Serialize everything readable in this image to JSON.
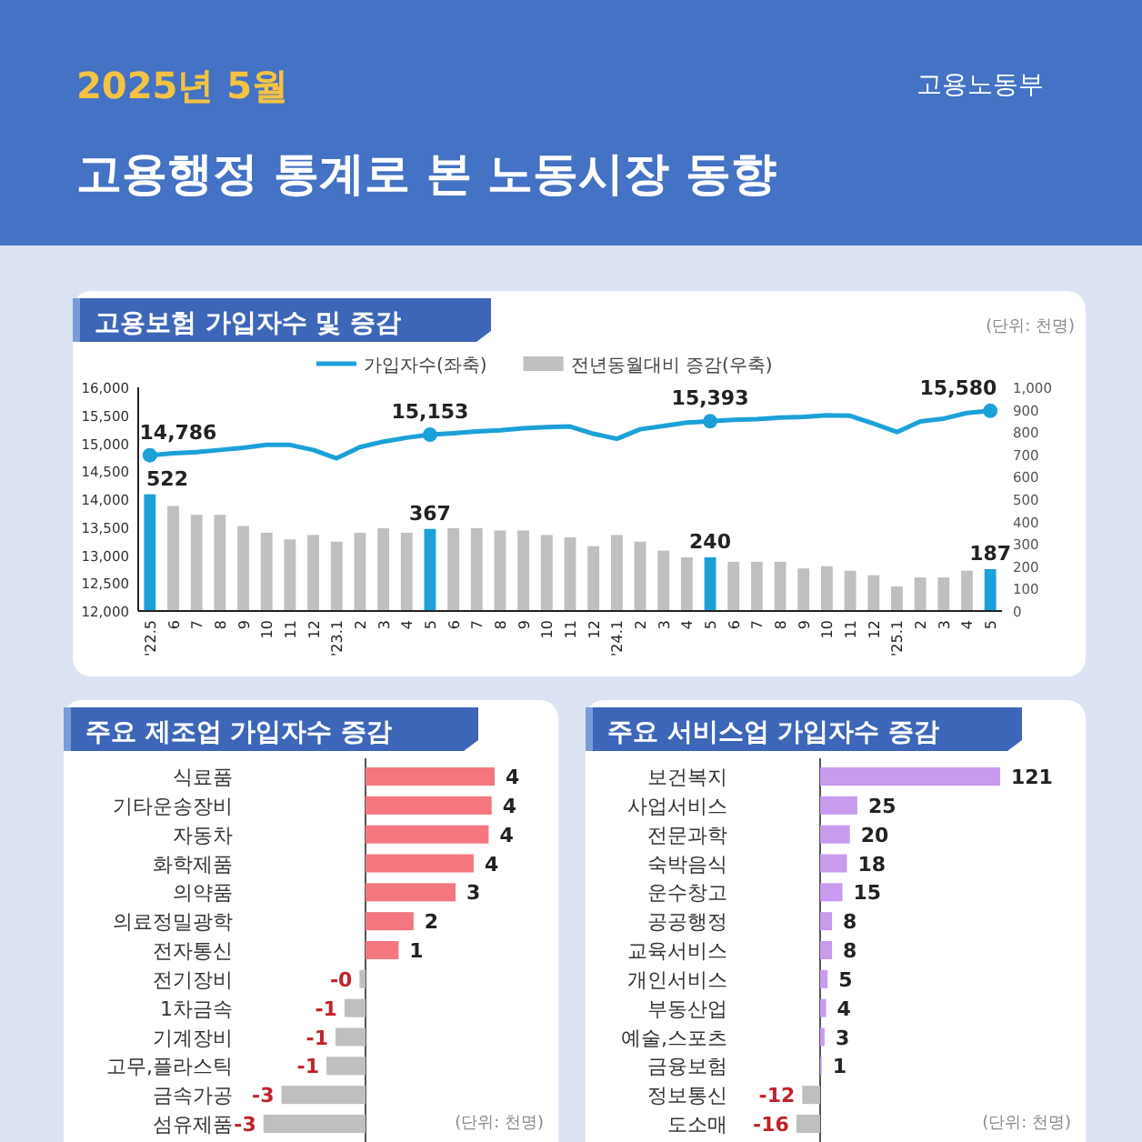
{
  "chart_data": [
    {
      "type": "other",
      "title": "고용행정 통계로 본 노동시장 동향",
      "subtitle": "2025년 5월",
      "annotations": [
        "고용노동부"
      ]
    },
    {
      "type": "bar",
      "title": "고용보험 가입자수 및 증감",
      "annotations": [
        "(단위: 천명)"
      ],
      "legend": "top",
      "categories": [
        "'22.5",
        "6",
        "7",
        "8",
        "9",
        "10",
        "11",
        "12",
        "'23.1",
        "2",
        "3",
        "4",
        "5",
        "6",
        "7",
        "8",
        "9",
        "10",
        "11",
        "12",
        "'24.1",
        "2",
        "3",
        "4",
        "5",
        "6",
        "7",
        "8",
        "9",
        "10",
        "11",
        "12",
        "'25.1",
        "2",
        "3",
        "4",
        "5"
      ],
      "ylim": [
        12000,
        16000
      ],
      "yticks": [
        {
          "value": 12000,
          "label": "12,000"
        },
        {
          "value": 12500,
          "label": "12,500"
        },
        {
          "value": 13000,
          "label": "13,000"
        },
        {
          "value": 13500,
          "label": "13,500"
        },
        {
          "value": 14000,
          "label": "14,000"
        },
        {
          "value": 14500,
          "label": "14,500"
        },
        {
          "value": 15000,
          "label": "15,000"
        },
        {
          "value": 15500,
          "label": "15,500"
        },
        {
          "value": 16000,
          "label": "16,000"
        }
      ],
      "y2lim": [
        0,
        1000
      ],
      "y2ticks": [
        0,
        100,
        200,
        300,
        400,
        500,
        600,
        700,
        800,
        900,
        {
          "value": 1000,
          "label": "1,000"
        }
      ],
      "series": [
        {
          "name": "전년동월대비 증감(우축)",
          "type": "bar",
          "axis": "y2",
          "color": "#bfbfbf",
          "colors": [
            "#1ba1d8",
            "#bfbfbf",
            "#bfbfbf",
            "#bfbfbf",
            "#bfbfbf",
            "#bfbfbf",
            "#bfbfbf",
            "#bfbfbf",
            "#bfbfbf",
            "#bfbfbf",
            "#bfbfbf",
            "#bfbfbf",
            "#1ba1d8",
            "#bfbfbf",
            "#bfbfbf",
            "#bfbfbf",
            "#bfbfbf",
            "#bfbfbf",
            "#bfbfbf",
            "#bfbfbf",
            "#bfbfbf",
            "#bfbfbf",
            "#bfbfbf",
            "#bfbfbf",
            "#1ba1d8",
            "#bfbfbf",
            "#bfbfbf",
            "#bfbfbf",
            "#bfbfbf",
            "#bfbfbf",
            "#bfbfbf",
            "#bfbfbf",
            "#bfbfbf",
            "#bfbfbf",
            "#bfbfbf",
            "#bfbfbf",
            "#1ba1d8"
          ],
          "values": [
            522,
            470,
            430,
            430,
            380,
            350,
            320,
            340,
            310,
            350,
            370,
            350,
            367,
            370,
            370,
            360,
            360,
            340,
            330,
            290,
            340,
            310,
            270,
            240,
            240,
            220,
            220,
            220,
            190,
            200,
            180,
            160,
            110,
            150,
            150,
            180,
            187
          ],
          "value_labels": [
            "522",
            null,
            null,
            null,
            null,
            null,
            null,
            null,
            null,
            null,
            null,
            null,
            "367",
            null,
            null,
            null,
            null,
            null,
            null,
            null,
            null,
            null,
            null,
            null,
            "240",
            null,
            null,
            null,
            null,
            null,
            null,
            null,
            null,
            null,
            null,
            null,
            "187"
          ]
        },
        {
          "name": "가입자수(좌축)",
          "type": "line",
          "color": "#1ba1d8",
          "values": [
            14786,
            14820,
            14840,
            14880,
            14920,
            14970,
            14970,
            14880,
            14730,
            14930,
            15030,
            15100,
            15153,
            15180,
            15210,
            15230,
            15270,
            15290,
            15300,
            15170,
            15080,
            15250,
            15310,
            15370,
            15393,
            15420,
            15430,
            15460,
            15470,
            15500,
            15490,
            15350,
            15200,
            15390,
            15440,
            15540,
            15580
          ],
          "value_labels": [
            "14,786",
            null,
            null,
            null,
            null,
            null,
            null,
            null,
            null,
            null,
            null,
            null,
            "15,153",
            null,
            null,
            null,
            null,
            null,
            null,
            null,
            null,
            null,
            null,
            null,
            "15,393",
            null,
            null,
            null,
            null,
            null,
            null,
            null,
            null,
            null,
            null,
            null,
            "15,580"
          ]
        }
      ]
    },
    {
      "type": "bar",
      "orientation": "horizontal",
      "title": "주요 제조업 가입자수 증감",
      "annotations": [
        "(단위: 천명)"
      ],
      "categories": [
        "식료품",
        "기타운송장비",
        "자동차",
        "화학제품",
        "의약품",
        "의료정밀광학",
        "전자통신",
        "전기장비",
        "1차금속",
        "기계장비",
        "고무,플라스틱",
        "금속가공",
        "섬유제품"
      ],
      "values": [
        4.3,
        4.2,
        4.1,
        3.6,
        3.0,
        1.6,
        1.1,
        -0.2,
        -0.7,
        -1.0,
        -1.3,
        -2.8,
        -3.4
      ],
      "colors": [
        "#f4777f",
        "#f4777f",
        "#f4777f",
        "#f4777f",
        "#f4777f",
        "#f4777f",
        "#f4777f",
        "#bfbfbf",
        "#bfbfbf",
        "#bfbfbf",
        "#bfbfbf",
        "#bfbfbf",
        "#bfbfbf"
      ],
      "value_labels": [
        "4",
        "4",
        "4",
        "4",
        "3",
        "2",
        "1",
        "-0",
        "-1",
        "-1",
        "-1",
        "-3",
        "-3"
      ]
    },
    {
      "type": "bar",
      "orientation": "horizontal",
      "title": "주요 서비스업 가입자수 증감",
      "annotations": [
        "(단위: 천명)"
      ],
      "data_labels": true,
      "categories": [
        "보건복지",
        "사업서비스",
        "전문과학",
        "숙박음식",
        "운수창고",
        "공공행정",
        "교육서비스",
        "개인서비스",
        "부동산업",
        "예술,스포츠",
        "금융보험",
        "정보통신",
        "도소매"
      ],
      "values": [
        121,
        25,
        20,
        18,
        15,
        8,
        8,
        5,
        4,
        3,
        1,
        -12,
        -16
      ],
      "colors": [
        "#c99bef",
        "#c99bef",
        "#c99bef",
        "#c99bef",
        "#c99bef",
        "#c99bef",
        "#c99bef",
        "#c99bef",
        "#c99bef",
        "#c99bef",
        "#c99bef",
        "#bfbfbf",
        "#bfbfbf"
      ]
    }
  ]
}
